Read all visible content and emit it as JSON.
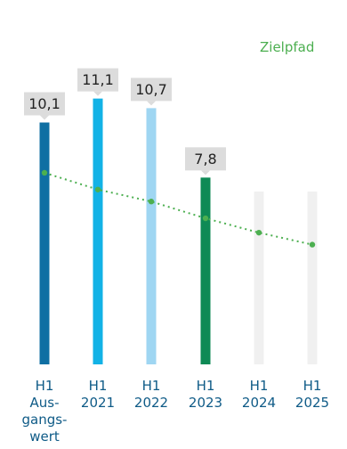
{
  "chart_data": {
    "type": "bar",
    "categories": [
      [
        "H1",
        "Aus-",
        "gangs-",
        "wert"
      ],
      [
        "H1",
        "2021"
      ],
      [
        "H1",
        "2022"
      ],
      [
        "H1",
        "2023"
      ],
      [
        "H1",
        "2024"
      ],
      [
        "H1",
        "2025"
      ]
    ],
    "values": [
      10.1,
      11.1,
      10.7,
      7.8,
      null,
      null
    ],
    "value_labels": [
      "10,1",
      "11,1",
      "10,7",
      "7,8",
      "",
      ""
    ],
    "bar_colors": [
      "#0f6fa3",
      "#12b2e6",
      "#9fd6f2",
      "#0e8a55",
      "#f0f0f0",
      "#f0f0f0"
    ],
    "target_path": {
      "name": "Zielpfad",
      "values": [
        8.0,
        7.3,
        6.8,
        6.1,
        5.5,
        5.0
      ],
      "color": "#4caf50",
      "style": "dotted"
    },
    "ylim": [
      0,
      12.5
    ],
    "label_box_color": "#dcdcdc",
    "axis_label_color": "#0f5b87"
  }
}
